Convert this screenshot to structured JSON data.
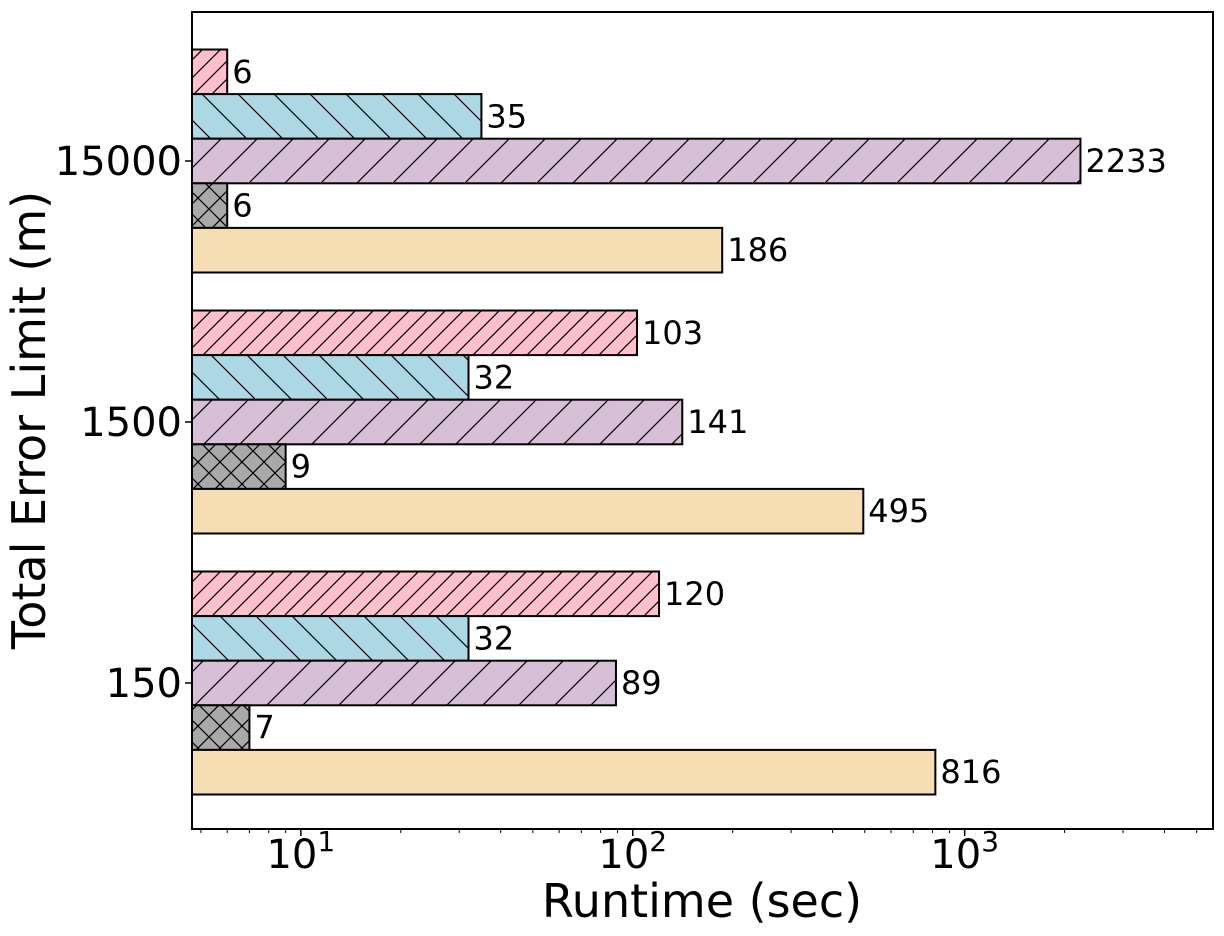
{
  "chart_data": {
    "type": "bar",
    "orientation": "horizontal",
    "title": "",
    "xlabel": "Runtime (sec)",
    "ylabel": "Total Error Limit (m)",
    "x_scale": "log",
    "xlim": [
      4.7,
      5600
    ],
    "xticks": [
      {
        "value": 10,
        "base": "10",
        "exp": "1"
      },
      {
        "value": 100,
        "base": "10",
        "exp": "2"
      },
      {
        "value": 1000,
        "base": "10",
        "exp": "3"
      }
    ],
    "categories": [
      "150",
      "1500",
      "15000"
    ],
    "series": [
      {
        "color": "#ffc0cb",
        "hatch": "diag-forward",
        "values": [
          120,
          103,
          6
        ]
      },
      {
        "color": "#add8e6",
        "hatch": "diag-back-wide",
        "values": [
          32,
          32,
          35
        ]
      },
      {
        "color": "#d8bfd8",
        "hatch": "diag-forward-wide",
        "values": [
          89,
          141,
          2233
        ]
      },
      {
        "color": "#a9a9a9",
        "hatch": "cross",
        "values": [
          7,
          9,
          6
        ]
      },
      {
        "color": "#f5deb3",
        "hatch": "none",
        "values": [
          816,
          495,
          186
        ]
      }
    ],
    "grid": false,
    "legend": false
  }
}
